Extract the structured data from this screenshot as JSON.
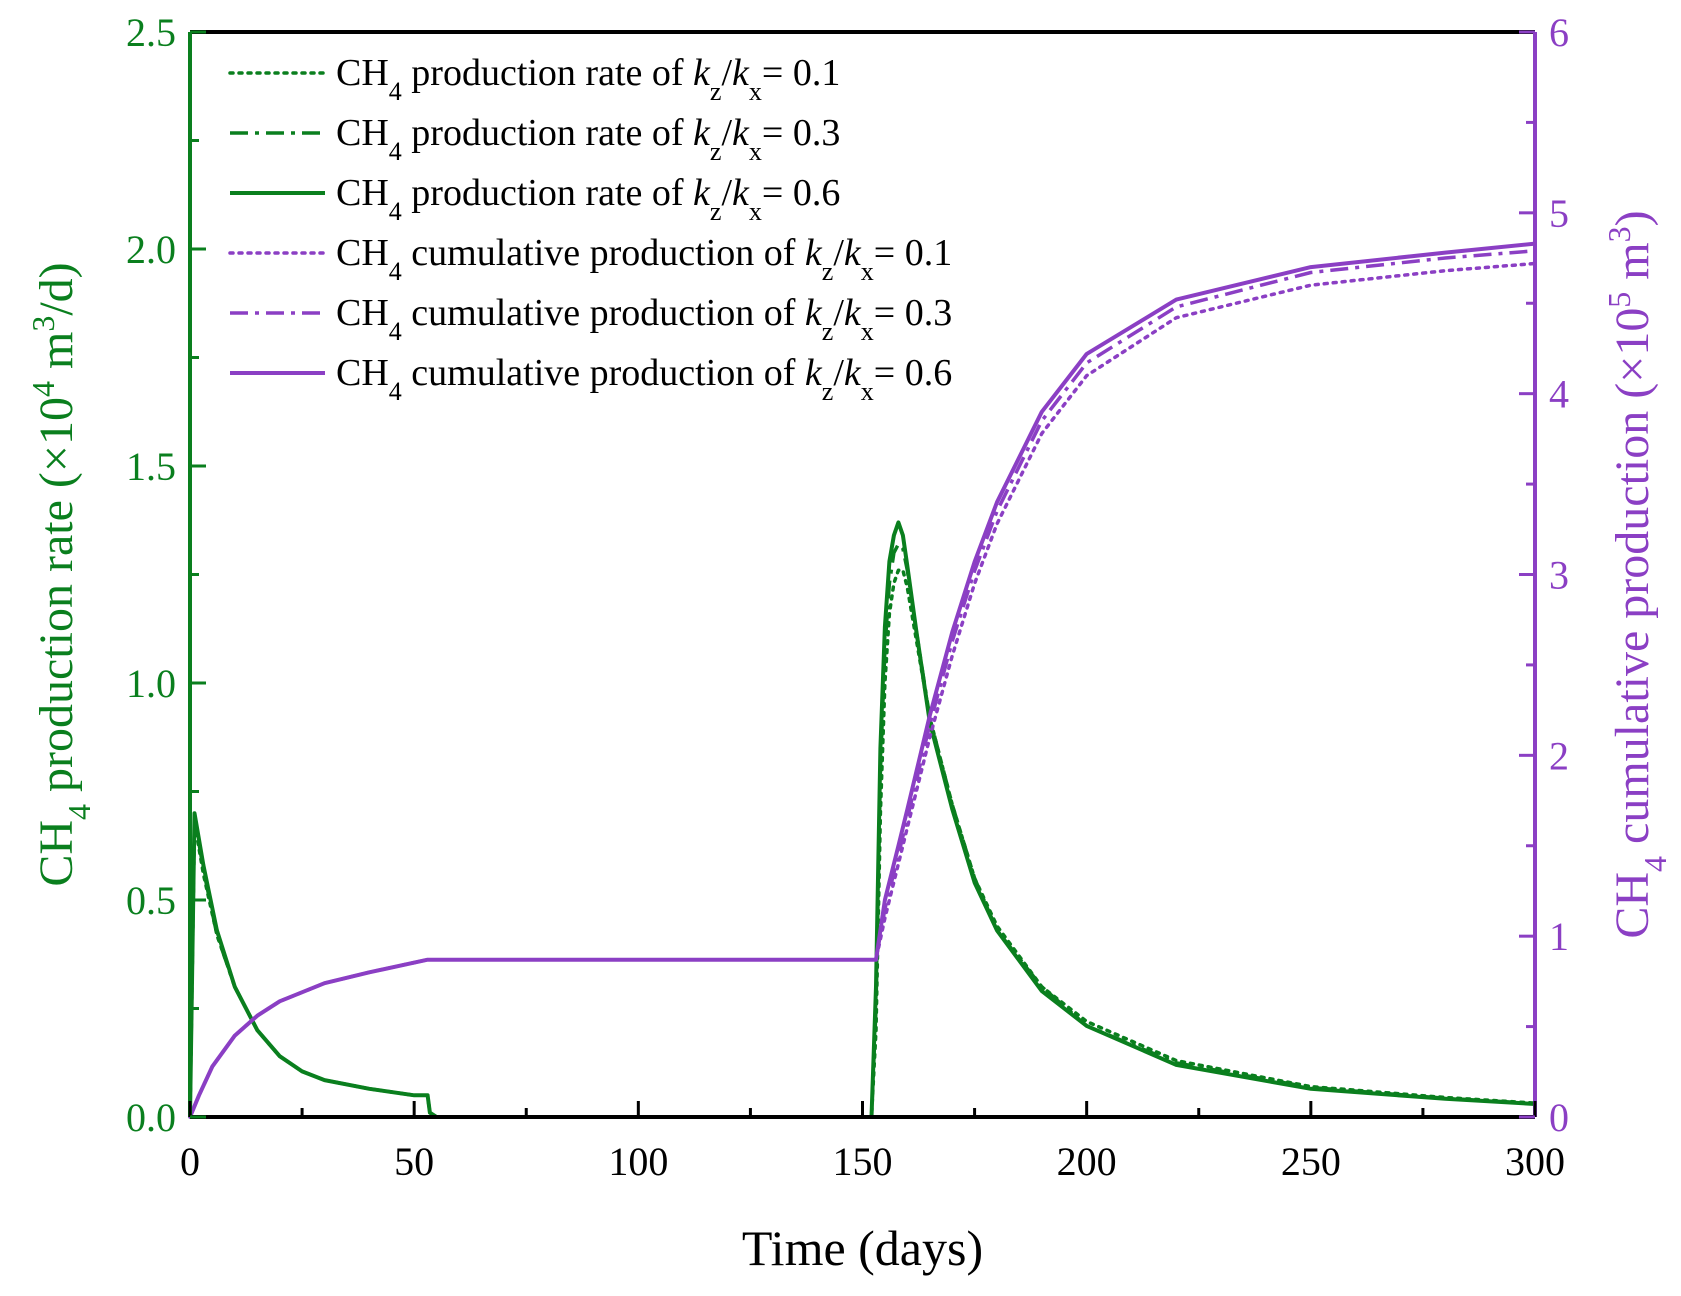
{
  "colors": {
    "rate": "#0a7f1e",
    "cumulative": "#8b3fc4",
    "frame": "#000000"
  },
  "chart_data": {
    "type": "line",
    "xlabel": "Time (days)",
    "xlim": [
      0,
      300
    ],
    "x_ticks": [
      0,
      50,
      100,
      150,
      200,
      250,
      300
    ],
    "x_tick_labels": [
      "0",
      "50",
      "100",
      "150",
      "200",
      "250",
      "300"
    ],
    "y_left": {
      "label_parts": [
        "CH",
        "4",
        " production rate (×10",
        "4",
        " m",
        "3",
        "/d)"
      ],
      "ylim": [
        0,
        2.5
      ],
      "ticks": [
        0,
        0.5,
        1.0,
        1.5,
        2.0,
        2.5
      ],
      "tick_labels": [
        "0.0",
        "0.5",
        "1.0",
        "1.5",
        "2.0",
        "2.5"
      ]
    },
    "y_right": {
      "label_parts": [
        "CH",
        "4",
        " cumulative production (×10",
        "5",
        " m",
        "3",
        ")"
      ],
      "ylim": [
        0,
        6
      ],
      "ticks": [
        0,
        1,
        2,
        3,
        4,
        5,
        6
      ],
      "tick_labels": [
        "0",
        "1",
        "2",
        "3",
        "4",
        "5",
        "6"
      ]
    },
    "legend": {
      "position": "top-left",
      "entries": [
        {
          "prefix": "CH",
          "sub": "4",
          "text": " production rate of ",
          "k1": "k",
          "s1": "z",
          "slash": "/",
          "k2": "k",
          "s2": "x",
          "tail": "= 0.1",
          "style": "dotted",
          "color": "rate"
        },
        {
          "prefix": "CH",
          "sub": "4",
          "text": " production rate of ",
          "k1": "k",
          "s1": "z",
          "slash": "/",
          "k2": "k",
          "s2": "x",
          "tail": "= 0.3",
          "style": "dashdot",
          "color": "rate"
        },
        {
          "prefix": "CH",
          "sub": "4",
          "text": " production rate of ",
          "k1": "k",
          "s1": "z",
          "slash": "/",
          "k2": "k",
          "s2": "x",
          "tail": "= 0.6",
          "style": "solid",
          "color": "rate"
        },
        {
          "prefix": "CH",
          "sub": "4",
          "text": " cumulative production of ",
          "k1": "k",
          "s1": "z",
          "slash": "/",
          "k2": "k",
          "s2": "x",
          "tail": "= 0.1",
          "style": "dotted",
          "color": "cumulative"
        },
        {
          "prefix": "CH",
          "sub": "4",
          "text": " cumulative production of ",
          "k1": "k",
          "s1": "z",
          "slash": "/",
          "k2": "k",
          "s2": "x",
          "tail": "= 0.3",
          "style": "dashdot",
          "color": "cumulative"
        },
        {
          "prefix": "CH",
          "sub": "4",
          "text": " cumulative production of ",
          "k1": "k",
          "s1": "z",
          "slash": "/",
          "k2": "k",
          "s2": "x",
          "tail": "= 0.6",
          "style": "solid",
          "color": "cumulative"
        }
      ]
    },
    "series": [
      {
        "name": "CH4 production rate kz/kx=0.1",
        "axis": "left",
        "color": "rate",
        "style": "dotted",
        "x": [
          0,
          1,
          3,
          6,
          10,
          15,
          20,
          25,
          30,
          40,
          50,
          53,
          53.5,
          55,
          100,
          152,
          153,
          154,
          155,
          156,
          157,
          158,
          159,
          160,
          162,
          165,
          170,
          175,
          180,
          190,
          200,
          220,
          250,
          280,
          300
        ],
        "y": [
          0,
          0.68,
          0.56,
          0.42,
          0.3,
          0.2,
          0.14,
          0.105,
          0.085,
          0.065,
          0.05,
          0.05,
          0.01,
          0,
          0,
          0,
          0.2,
          0.7,
          1.0,
          1.16,
          1.23,
          1.26,
          1.26,
          1.22,
          1.1,
          0.92,
          0.72,
          0.55,
          0.44,
          0.3,
          0.22,
          0.13,
          0.07,
          0.045,
          0.032
        ]
      },
      {
        "name": "CH4 production rate kz/kx=0.3",
        "axis": "left",
        "color": "rate",
        "style": "dashdot",
        "x": [
          0,
          1,
          3,
          6,
          10,
          15,
          20,
          25,
          30,
          40,
          50,
          53,
          53.5,
          55,
          100,
          152,
          153,
          154,
          155,
          156,
          157,
          158,
          159,
          160,
          162,
          165,
          170,
          175,
          180,
          190,
          200,
          220,
          250,
          280,
          300
        ],
        "y": [
          0,
          0.69,
          0.57,
          0.42,
          0.3,
          0.2,
          0.14,
          0.105,
          0.085,
          0.065,
          0.05,
          0.05,
          0.01,
          0,
          0,
          0,
          0.25,
          0.8,
          1.08,
          1.23,
          1.3,
          1.32,
          1.31,
          1.26,
          1.12,
          0.92,
          0.72,
          0.55,
          0.43,
          0.3,
          0.21,
          0.125,
          0.068,
          0.043,
          0.031
        ]
      },
      {
        "name": "CH4 production rate kz/kx=0.6",
        "axis": "left",
        "color": "rate",
        "style": "solid",
        "x": [
          0,
          1,
          3,
          6,
          10,
          15,
          20,
          25,
          30,
          40,
          50,
          53,
          53.5,
          55,
          100,
          152,
          153,
          154,
          155,
          156,
          157,
          158,
          159,
          160,
          162,
          165,
          170,
          175,
          180,
          190,
          200,
          220,
          250,
          280,
          300
        ],
        "y": [
          0,
          0.7,
          0.58,
          0.43,
          0.3,
          0.2,
          0.14,
          0.105,
          0.085,
          0.065,
          0.05,
          0.05,
          0.01,
          0,
          0,
          0,
          0.3,
          0.85,
          1.13,
          1.28,
          1.34,
          1.37,
          1.34,
          1.27,
          1.12,
          0.91,
          0.71,
          0.54,
          0.43,
          0.29,
          0.21,
          0.12,
          0.065,
          0.042,
          0.03
        ]
      },
      {
        "name": "CH4 cumulative production kz/kx=0.1",
        "axis": "right",
        "color": "cumulative",
        "style": "dotted",
        "x": [
          0,
          2,
          5,
          10,
          15,
          20,
          30,
          40,
          53,
          100,
          153,
          155,
          158,
          160,
          165,
          170,
          175,
          180,
          190,
          200,
          220,
          250,
          280,
          300
        ],
        "y": [
          0,
          0.12,
          0.28,
          0.45,
          0.56,
          0.64,
          0.74,
          0.8,
          0.87,
          0.87,
          0.87,
          1.1,
          1.4,
          1.6,
          2.1,
          2.55,
          2.95,
          3.28,
          3.78,
          4.1,
          4.42,
          4.6,
          4.68,
          4.72
        ]
      },
      {
        "name": "CH4 cumulative production kz/kx=0.3",
        "axis": "right",
        "color": "cumulative",
        "style": "dashdot",
        "x": [
          0,
          2,
          5,
          10,
          15,
          20,
          30,
          40,
          53,
          100,
          153,
          155,
          158,
          160,
          165,
          170,
          175,
          180,
          190,
          200,
          220,
          250,
          280,
          300
        ],
        "y": [
          0,
          0.12,
          0.28,
          0.45,
          0.56,
          0.64,
          0.74,
          0.8,
          0.87,
          0.87,
          0.87,
          1.15,
          1.45,
          1.65,
          2.17,
          2.63,
          3.02,
          3.35,
          3.85,
          4.17,
          4.48,
          4.67,
          4.75,
          4.79
        ]
      },
      {
        "name": "CH4 cumulative production kz/kx=0.6",
        "axis": "right",
        "color": "cumulative",
        "style": "solid",
        "x": [
          0,
          2,
          5,
          10,
          15,
          20,
          30,
          40,
          53,
          100,
          153,
          155,
          158,
          160,
          165,
          170,
          175,
          180,
          190,
          200,
          220,
          250,
          280,
          300
        ],
        "y": [
          0,
          0.12,
          0.28,
          0.45,
          0.56,
          0.64,
          0.74,
          0.8,
          0.87,
          0.87,
          0.87,
          1.2,
          1.5,
          1.7,
          2.22,
          2.68,
          3.07,
          3.4,
          3.9,
          4.22,
          4.52,
          4.7,
          4.78,
          4.83
        ]
      }
    ]
  }
}
